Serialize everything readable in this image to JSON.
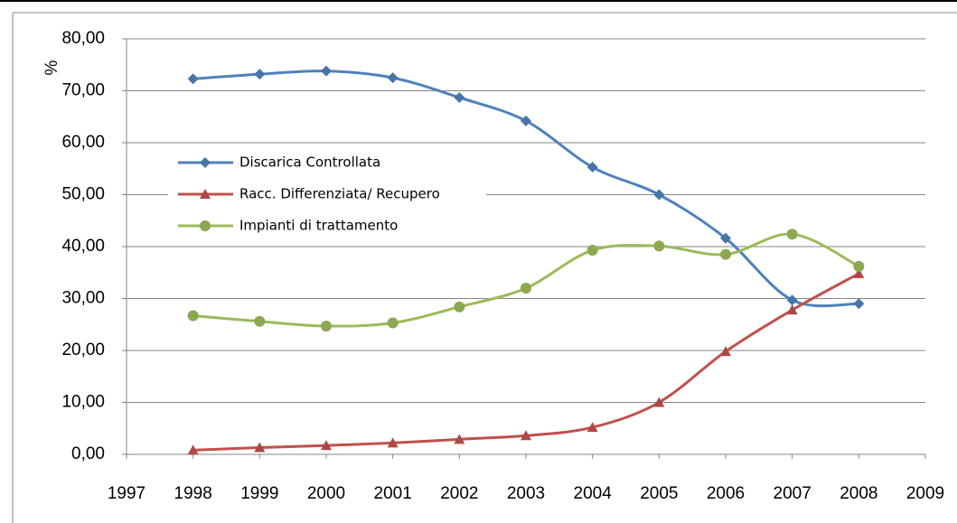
{
  "chart_data": {
    "type": "line",
    "y_label": "%",
    "x": [
      1998,
      1999,
      2000,
      2001,
      2002,
      2003,
      2004,
      2005,
      2006,
      2007,
      2008
    ],
    "series": [
      {
        "name": "Discarica Controllata",
        "color": "#4f81bd",
        "marker": "diamond",
        "values": [
          72.3,
          73.2,
          73.8,
          72.5,
          68.7,
          64.2,
          55.3,
          50.0,
          41.6,
          29.7,
          29.0
        ]
      },
      {
        "name": "Racc. Differenziata/ Recupero",
        "color": "#c0504d",
        "marker": "triangle",
        "values": [
          0.8,
          1.3,
          1.7,
          2.2,
          2.9,
          3.6,
          5.2,
          10.0,
          19.8,
          27.8,
          34.8
        ]
      },
      {
        "name": "Impianti di trattamento",
        "color": "#9bbb59",
        "marker": "circle",
        "values": [
          26.7,
          25.6,
          24.7,
          25.3,
          28.4,
          32.0,
          39.3,
          40.1,
          38.5,
          42.4,
          36.2
        ]
      }
    ],
    "xlim": [
      1997,
      2009
    ],
    "xticks": [
      1997,
      1998,
      1999,
      2000,
      2001,
      2002,
      2003,
      2004,
      2005,
      2006,
      2007,
      2008,
      2009
    ],
    "ylim": [
      0,
      80
    ],
    "yticks": [
      {
        "value": 0,
        "label": "0,00"
      },
      {
        "value": 10,
        "label": "10,00"
      },
      {
        "value": 20,
        "label": "20,00"
      },
      {
        "value": 30,
        "label": "30,00"
      },
      {
        "value": 40,
        "label": "40,00"
      },
      {
        "value": 50,
        "label": "50,00"
      },
      {
        "value": 60,
        "label": "60,00"
      },
      {
        "value": 70,
        "label": "70,00"
      },
      {
        "value": 80,
        "label": "80,00"
      }
    ],
    "grid": true,
    "smooth": true
  }
}
